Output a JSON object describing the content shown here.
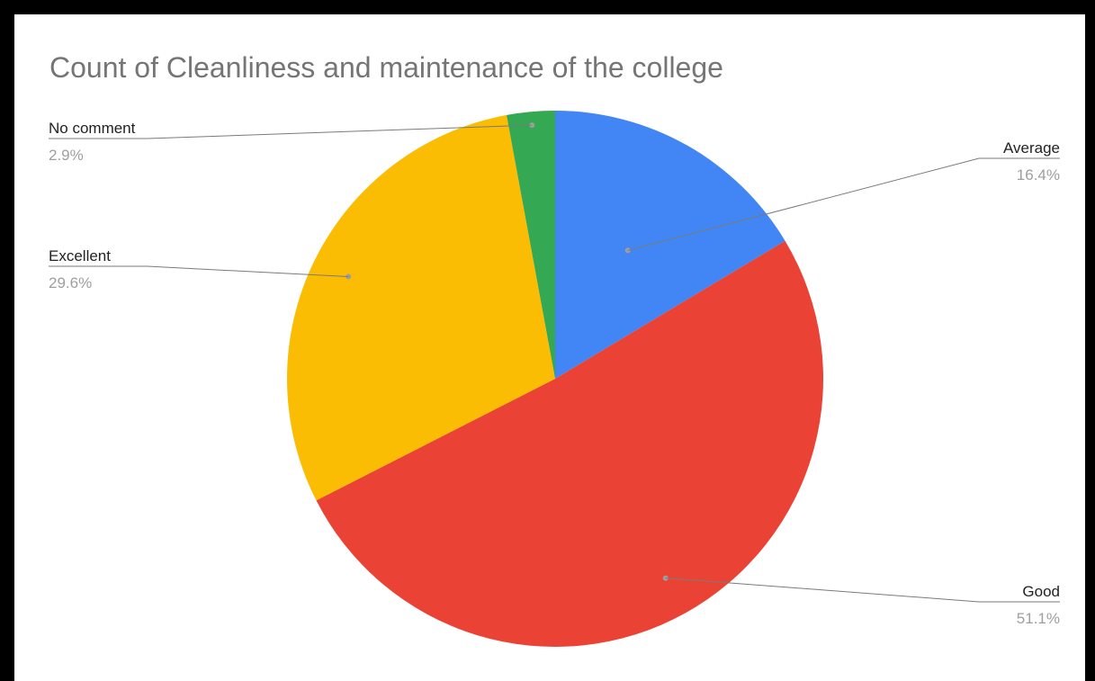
{
  "chart_data": {
    "type": "pie",
    "title": "Count of Cleanliness and maintenance of the college",
    "slices": [
      {
        "label": "Average",
        "percent_label": "16.4%",
        "value": 16.4,
        "color": "#4285F4"
      },
      {
        "label": "Good",
        "percent_label": "51.1%",
        "value": 51.1,
        "color": "#EA4335"
      },
      {
        "label": "Excellent",
        "percent_label": "29.6%",
        "value": 29.6,
        "color": "#FBBC04"
      },
      {
        "label": "No comment",
        "percent_label": "2.9%",
        "value": 2.9,
        "color": "#34A853"
      }
    ],
    "start_angle": "top",
    "direction": "clockwise",
    "legend": "none"
  },
  "colors": {
    "frame": "#000000",
    "background": "#ffffff",
    "title": "#757575",
    "leader_line": "#9e9e9e"
  }
}
